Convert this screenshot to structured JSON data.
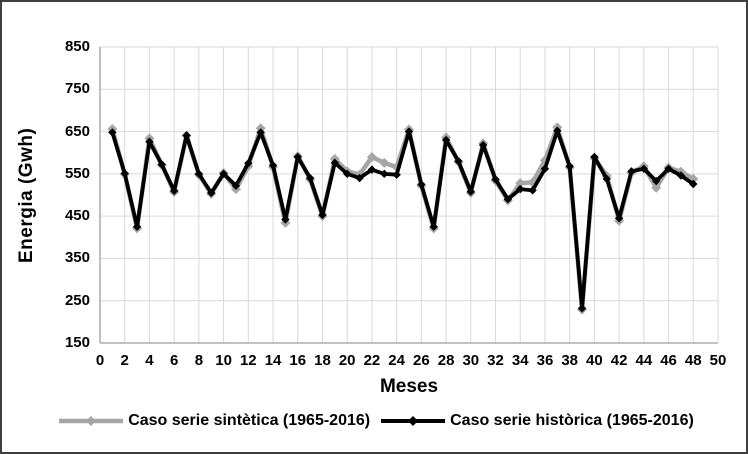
{
  "chart_data": {
    "type": "line",
    "title": "",
    "xlabel": "Meses",
    "ylabel": "Energia (Gwh)",
    "x_range": [
      0,
      50
    ],
    "y_range": [
      150,
      850
    ],
    "x_ticks": [
      0,
      2,
      4,
      6,
      8,
      10,
      12,
      14,
      16,
      18,
      20,
      22,
      24,
      26,
      28,
      30,
      32,
      34,
      36,
      38,
      40,
      42,
      44,
      46,
      48,
      50
    ],
    "y_ticks": [
      150,
      250,
      350,
      450,
      550,
      650,
      750,
      850
    ],
    "grid": true,
    "legend_position": "bottom",
    "grid_color": "#d9d9d9",
    "axis_color": "#9e9e9e",
    "x": [
      1,
      2,
      3,
      4,
      5,
      6,
      7,
      8,
      9,
      10,
      11,
      12,
      13,
      14,
      15,
      16,
      17,
      18,
      19,
      20,
      21,
      22,
      23,
      24,
      25,
      26,
      27,
      28,
      29,
      30,
      31,
      32,
      33,
      34,
      35,
      36,
      37,
      38,
      39,
      40,
      41,
      42,
      43,
      44,
      45,
      46,
      47,
      48
    ],
    "series": [
      {
        "name": "Caso serie sintètica (1965-2016)",
        "color": "#a6a6a6",
        "marker": "diamond",
        "line_width": 4.5,
        "marker_size": 5,
        "values": [
          656,
          549,
          421,
          634,
          571,
          507,
          640,
          548,
          503,
          552,
          514,
          568,
          658,
          566,
          434,
          592,
          537,
          450,
          585,
          556,
          548,
          590,
          576,
          566,
          655,
          522,
          421,
          636,
          578,
          505,
          622,
          534,
          487,
          528,
          530,
          582,
          660,
          565,
          229,
          587,
          545,
          439,
          553,
          568,
          517,
          565,
          555,
          538
        ]
      },
      {
        "name": "Caso serie històrica (1965-2016)",
        "color": "#000000",
        "marker": "diamond",
        "line_width": 3.8,
        "marker_size": 4.2,
        "values": [
          648,
          551,
          425,
          626,
          572,
          510,
          641,
          550,
          505,
          550,
          522,
          575,
          648,
          570,
          442,
          590,
          540,
          453,
          576,
          550,
          540,
          560,
          550,
          548,
          650,
          525,
          425,
          630,
          580,
          508,
          618,
          537,
          490,
          514,
          511,
          562,
          652,
          568,
          232,
          590,
          538,
          445,
          556,
          562,
          533,
          562,
          546,
          526
        ]
      }
    ]
  }
}
